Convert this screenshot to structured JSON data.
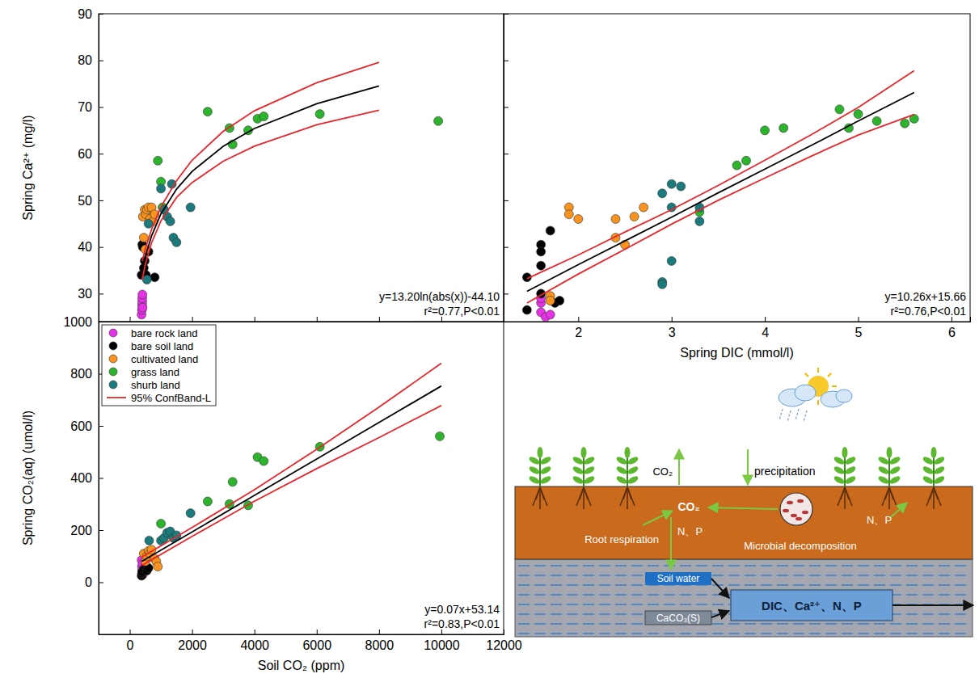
{
  "chart_data": [
    {
      "type": "scatter",
      "y_label": "Spring Ca²⁺ (mg/l)",
      "xlim": [
        -1000,
        12000
      ],
      "xticks": [
        0,
        2000,
        4000,
        6000,
        8000,
        10000,
        12000
      ],
      "ylim": [
        24,
        90
      ],
      "yticks": [
        30,
        40,
        50,
        60,
        70,
        80,
        90
      ],
      "tick_labels": "y",
      "annotations": [
        "y=13.20ln(abs(x))-44.10",
        "r²=0.77,P<0.01"
      ],
      "series": [
        {
          "type": "scatter",
          "marker": "circle",
          "color": "#e632e6",
          "x": [
            380,
            390,
            395,
            400,
            400,
            405,
            410
          ],
          "values": [
            25.5,
            26.5,
            27.5,
            28.2,
            29,
            29.8,
            27
          ]
        },
        {
          "type": "scatter",
          "marker": "circle",
          "color": "#000000",
          "x": [
            380,
            400,
            420,
            450,
            480,
            520,
            600,
            800
          ],
          "values": [
            34,
            40.5,
            40,
            35.5,
            37,
            34,
            39,
            33.5
          ]
        },
        {
          "type": "scatter",
          "marker": "circle",
          "color": "#f7931e",
          "x": [
            420,
            450,
            480,
            500,
            520,
            550,
            600,
            650,
            700,
            750,
            800
          ],
          "values": [
            46.5,
            42,
            48,
            39.5,
            47,
            48,
            48.5,
            46,
            48.5,
            45.5,
            47
          ]
        },
        {
          "type": "scatter",
          "marker": "circle",
          "color": "#2cb52c",
          "x": [
            900,
            1000,
            1050,
            2500,
            3200,
            3300,
            3800,
            4100,
            4300,
            6100,
            9900
          ],
          "values": [
            58.5,
            54,
            48.5,
            69,
            65.5,
            62,
            65,
            67.5,
            68,
            68.5,
            67
          ]
        },
        {
          "type": "scatter",
          "marker": "circle",
          "color": "#1b7b7c",
          "x": [
            550,
            600,
            1000,
            1100,
            1200,
            1300,
            1350,
            1400,
            1500,
            1950
          ],
          "values": [
            33,
            45,
            52.5,
            48,
            46.5,
            45.5,
            53.5,
            42,
            41,
            48.5
          ]
        },
        {
          "type": "line",
          "line_style": "solid",
          "color": "#000000",
          "x": [
            400,
            500,
            700,
            1000,
            1500,
            2000,
            3000,
            4000,
            6000,
            8000
          ],
          "values": [
            35.0,
            38.0,
            42.4,
            47.1,
            52.4,
            56.2,
            61.6,
            65.4,
            70.7,
            74.5
          ]
        },
        {
          "type": "line",
          "line_style": "solid",
          "color": "#e8262b",
          "x": [
            400,
            500,
            700,
            1000,
            1500,
            2000,
            3000,
            4000,
            6000,
            8000
          ],
          "values": [
            33.0,
            36.3,
            40.9,
            45.6,
            50.6,
            53.8,
            58.4,
            61.6,
            66.2,
            69.3
          ]
        },
        {
          "type": "line",
          "line_style": "solid",
          "color": "#e8262b",
          "x": [
            400,
            500,
            700,
            1000,
            1500,
            2000,
            3000,
            4000,
            6000,
            8000
          ],
          "values": [
            37.0,
            39.6,
            43.8,
            48.6,
            54.2,
            58.6,
            64.8,
            69.2,
            75.2,
            79.6
          ]
        }
      ]
    },
    {
      "type": "scatter",
      "x_label": "Spring DIC (mmol/l)",
      "xlim": [
        1.2,
        6.2
      ],
      "xticks": [
        2,
        3,
        4,
        5,
        6
      ],
      "ylim": [
        24,
        90
      ],
      "yticks": [
        30,
        40,
        50,
        60,
        70,
        80,
        90
      ],
      "tick_labels": "x",
      "annotations": [
        "y=10.26x+15.66",
        "r²=0.76,P<0.01"
      ],
      "series": [
        {
          "type": "scatter",
          "marker": "circle",
          "color": "#e632e6",
          "x": [
            1.6,
            1.6,
            1.6,
            1.65,
            1.7
          ],
          "values": [
            28,
            29,
            26,
            25,
            25.5
          ]
        },
        {
          "type": "scatter",
          "marker": "circle",
          "color": "#000000",
          "x": [
            1.45,
            1.45,
            1.6,
            1.6,
            1.6,
            1.6,
            1.7,
            1.75,
            1.8
          ],
          "values": [
            33.5,
            26.5,
            40.5,
            39,
            36,
            30,
            43.5,
            28,
            28.5
          ]
        },
        {
          "type": "scatter",
          "marker": "circle",
          "color": "#f7931e",
          "x": [
            1.7,
            1.7,
            1.9,
            1.9,
            2.0,
            2.4,
            2.4,
            2.5,
            2.6,
            2.7
          ],
          "values": [
            29.5,
            28.5,
            48.5,
            47,
            46,
            46,
            42,
            40.5,
            46.5,
            48.5
          ]
        },
        {
          "type": "scatter",
          "marker": "circle",
          "color": "#2cb52c",
          "x": [
            3.3,
            3.7,
            3.8,
            4.0,
            4.2,
            4.8,
            4.9,
            5.0,
            5.2,
            5.5,
            5.6
          ],
          "values": [
            47.5,
            57.5,
            58.5,
            65,
            65.5,
            69.5,
            65.5,
            68.5,
            67,
            66.5,
            67.5
          ]
        },
        {
          "type": "scatter",
          "marker": "circle",
          "color": "#1b7b7c",
          "x": [
            2.9,
            2.9,
            2.9,
            3.0,
            3.0,
            3.0,
            3.1,
            3.3,
            3.3
          ],
          "values": [
            51.5,
            32.5,
            32,
            53.5,
            48.5,
            37,
            53,
            48.5,
            45.5
          ]
        },
        {
          "type": "line",
          "line_style": "solid",
          "color": "#000000",
          "x": [
            1.45,
            2,
            2.5,
            3,
            3.5,
            4,
            4.5,
            5,
            5.6
          ],
          "values": [
            30.5,
            36.2,
            41.3,
            46.4,
            51.6,
            56.7,
            61.8,
            67.0,
            73.1
          ]
        },
        {
          "type": "line",
          "line_style": "solid",
          "color": "#e8262b",
          "x": [
            1.45,
            2,
            2.5,
            3,
            3.5,
            4,
            4.5,
            5,
            5.6
          ],
          "values": [
            28.0,
            34.2,
            39.5,
            44.9,
            50.0,
            54.8,
            59.5,
            64.0,
            68.4
          ]
        },
        {
          "type": "line",
          "line_style": "solid",
          "color": "#e8262b",
          "x": [
            1.45,
            2,
            2.5,
            3,
            3.5,
            4,
            4.5,
            5,
            5.6
          ],
          "values": [
            33.2,
            38.3,
            43.2,
            48.0,
            53.2,
            58.6,
            64.1,
            69.9,
            77.8
          ]
        }
      ]
    },
    {
      "type": "scatter",
      "x_label": "Soil CO₂ (ppm)",
      "y_label": "Spring CO₂(aq) (umol/l)",
      "xlim": [
        -1000,
        12000
      ],
      "xticks": [
        0,
        2000,
        4000,
        6000,
        8000,
        10000,
        12000
      ],
      "ylim": [
        -200,
        1000
      ],
      "yticks": [
        0,
        200,
        400,
        600,
        800,
        1000
      ],
      "legend": "upper left",
      "annotations": [
        "y=0.07x+53.14",
        "r²=0.83,P<0.01"
      ],
      "series": [
        {
          "name": "bare rock land",
          "type": "scatter",
          "marker": "circle",
          "color": "#e632e6",
          "x": [
            380,
            390,
            400,
            410,
            420
          ],
          "values": [
            85,
            60,
            45,
            70,
            30
          ]
        },
        {
          "name": "bare soil land",
          "type": "scatter",
          "marker": "circle",
          "color": "#000000",
          "x": [
            380,
            390,
            400,
            450,
            500,
            550,
            600
          ],
          "values": [
            25,
            35,
            40,
            50,
            60,
            45,
            55
          ]
        },
        {
          "name": "cultivated land",
          "type": "scatter",
          "marker": "circle",
          "color": "#f7931e",
          "x": [
            450,
            500,
            550,
            600,
            650,
            700,
            800,
            850,
            900
          ],
          "values": [
            110,
            80,
            100,
            120,
            110,
            125,
            90,
            80,
            60
          ]
        },
        {
          "name": "grass land",
          "type": "scatter",
          "marker": "circle",
          "color": "#2cb52c",
          "x": [
            1000,
            2500,
            3200,
            3300,
            3800,
            4100,
            4300,
            6100,
            9950
          ],
          "values": [
            225,
            310,
            300,
            385,
            295,
            480,
            465,
            520,
            560
          ]
        },
        {
          "name": "shurb land",
          "type": "scatter",
          "marker": "circle",
          "color": "#1b7b7c",
          "x": [
            620,
            1000,
            1100,
            1200,
            1300,
            1400,
            1500,
            1950
          ],
          "values": [
            160,
            160,
            170,
            190,
            195,
            170,
            180,
            265
          ]
        },
        {
          "type": "line",
          "line_style": "solid",
          "color": "#000000",
          "x": [
            380,
            2000,
            4000,
            6000,
            8000,
            10000
          ],
          "values": [
            79.7,
            193.1,
            333.1,
            473.1,
            613.1,
            753.1
          ]
        },
        {
          "name": "95% ConfBand-L",
          "type": "line",
          "line_style": "solid",
          "color": "#e8262b",
          "x": [
            380,
            2000,
            4000,
            6000,
            8000,
            10000
          ],
          "values": [
            64,
            176,
            311,
            436,
            555,
            678
          ]
        },
        {
          "type": "line",
          "line_style": "solid",
          "color": "#e8262b",
          "x": [
            380,
            2000,
            4000,
            6000,
            8000,
            10000
          ],
          "values": [
            96,
            210,
            355,
            510,
            672,
            840
          ]
        }
      ]
    }
  ],
  "diagram": {
    "labels": {
      "co2_out": "CO₂",
      "precipitation": "precipitation",
      "co2_soil": "CO₂",
      "root_respiration": "Root respiration",
      "n_p_down": "N、P",
      "microbial_decomposition": "Microbial decomposition",
      "n_p_plants": "N、P",
      "soil_water": "Soil water",
      "caco3": "CaCO₃(S)",
      "outputs": "DIC、Ca²⁺、N、P"
    }
  }
}
